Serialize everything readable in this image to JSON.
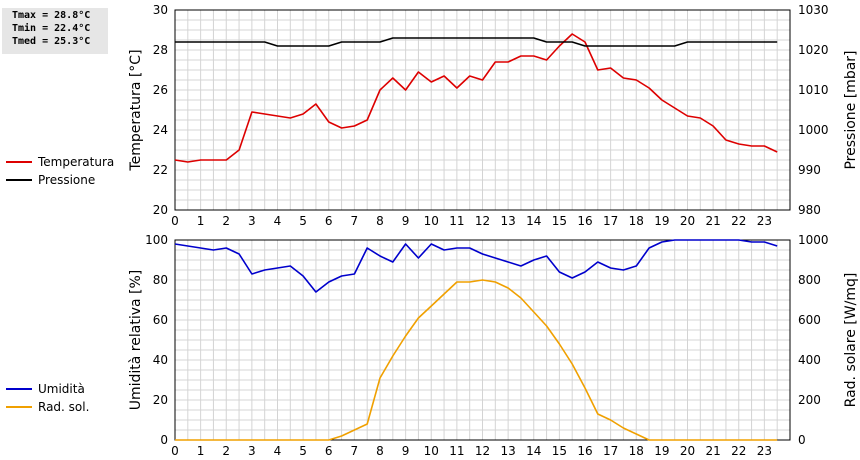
{
  "stats": {
    "tmax": "Tmax = 28.8°C",
    "tmin": "Tmin = 22.4°C",
    "tmed": "Tmed = 25.3°C"
  },
  "chart_data": [
    {
      "type": "line",
      "xlim": [
        0,
        24
      ],
      "x_ticks": [
        0,
        1,
        2,
        3,
        4,
        5,
        6,
        7,
        8,
        9,
        10,
        11,
        12,
        13,
        14,
        15,
        16,
        17,
        18,
        19,
        20,
        21,
        22,
        23
      ],
      "left_axis": {
        "label": "Temperatura [°C]",
        "ylim": [
          20,
          30
        ],
        "ticks": [
          20,
          22,
          24,
          26,
          28,
          30
        ]
      },
      "right_axis": {
        "label": "Pressione [mbar]",
        "ylim": [
          980,
          1030
        ],
        "ticks": [
          980,
          990,
          1000,
          1010,
          1020,
          1030
        ]
      },
      "grid": true,
      "legend_position": "left-outside",
      "series": [
        {
          "name": "Temperatura",
          "color": "#dd0000",
          "axis": "left",
          "x": [
            0,
            0.5,
            1,
            1.5,
            2,
            2.5,
            3,
            3.5,
            4,
            4.5,
            5,
            5.5,
            6,
            6.5,
            7,
            7.5,
            8,
            8.5,
            9,
            9.5,
            10,
            10.5,
            11,
            11.5,
            12,
            12.5,
            13,
            13.5,
            14,
            14.5,
            15,
            15.5,
            16,
            16.5,
            17,
            17.5,
            18,
            18.5,
            19,
            19.5,
            20,
            20.5,
            21,
            21.5,
            22,
            22.5,
            23,
            23.5
          ],
          "y": [
            22.5,
            22.4,
            22.5,
            22.5,
            22.5,
            23.0,
            24.9,
            24.8,
            24.7,
            24.6,
            24.8,
            25.3,
            24.4,
            24.1,
            24.2,
            24.5,
            26.0,
            26.6,
            26.0,
            26.9,
            26.4,
            26.7,
            26.1,
            26.7,
            26.5,
            27.4,
            27.4,
            27.7,
            27.7,
            27.5,
            28.2,
            28.8,
            28.4,
            27.0,
            27.1,
            26.6,
            26.5,
            26.1,
            25.5,
            25.1,
            24.7,
            24.6,
            24.2,
            23.5,
            23.3,
            23.2,
            23.2,
            22.9
          ]
        },
        {
          "name": "Pressione",
          "color": "#000000",
          "axis": "right",
          "x": [
            0,
            0.5,
            1,
            1.5,
            2,
            2.5,
            3,
            3.5,
            4,
            4.5,
            5,
            5.5,
            6,
            6.5,
            7,
            7.5,
            8,
            8.5,
            9,
            9.5,
            10,
            10.5,
            11,
            11.5,
            12,
            12.5,
            13,
            13.5,
            14,
            14.5,
            15,
            15.5,
            16,
            16.5,
            17,
            17.5,
            18,
            18.5,
            19,
            19.5,
            20,
            20.5,
            21,
            21.5,
            22,
            22.5,
            23,
            23.5
          ],
          "y": [
            1022,
            1022,
            1022,
            1022,
            1022,
            1022,
            1022,
            1022,
            1021,
            1021,
            1021,
            1021,
            1021,
            1022,
            1022,
            1022,
            1022,
            1023,
            1023,
            1023,
            1023,
            1023,
            1023,
            1023,
            1023,
            1023,
            1023,
            1023,
            1023,
            1022,
            1022,
            1022,
            1021,
            1021,
            1021,
            1021,
            1021,
            1021,
            1021,
            1021,
            1022,
            1022,
            1022,
            1022,
            1022,
            1022,
            1022,
            1022
          ]
        }
      ]
    },
    {
      "type": "line",
      "xlim": [
        0,
        24
      ],
      "x_ticks": [
        0,
        1,
        2,
        3,
        4,
        5,
        6,
        7,
        8,
        9,
        10,
        11,
        12,
        13,
        14,
        15,
        16,
        17,
        18,
        19,
        20,
        21,
        22,
        23
      ],
      "left_axis": {
        "label": "Umidità relativa [%]",
        "ylim": [
          0,
          100
        ],
        "ticks": [
          0,
          20,
          40,
          60,
          80,
          100
        ]
      },
      "right_axis": {
        "label": "Rad. solare [W/mq]",
        "ylim": [
          0,
          1000
        ],
        "ticks": [
          0,
          200,
          400,
          600,
          800,
          1000
        ]
      },
      "grid": true,
      "legend_position": "left-outside",
      "series": [
        {
          "name": "Umidità",
          "color": "#0000cc",
          "axis": "left",
          "x": [
            0,
            0.5,
            1,
            1.5,
            2,
            2.5,
            3,
            3.5,
            4,
            4.5,
            5,
            5.5,
            6,
            6.5,
            7,
            7.5,
            8,
            8.5,
            9,
            9.5,
            10,
            10.5,
            11,
            11.5,
            12,
            12.5,
            13,
            13.5,
            14,
            14.5,
            15,
            15.5,
            16,
            16.5,
            17,
            17.5,
            18,
            18.5,
            19,
            19.5,
            20,
            20.5,
            21,
            21.5,
            22,
            22.5,
            23,
            23.5
          ],
          "y": [
            98,
            97,
            96,
            95,
            96,
            93,
            83,
            85,
            86,
            87,
            82,
            74,
            79,
            82,
            83,
            96,
            92,
            89,
            98,
            91,
            98,
            95,
            96,
            96,
            93,
            91,
            89,
            87,
            90,
            92,
            84,
            81,
            84,
            89,
            86,
            85,
            87,
            96,
            99,
            100,
            100,
            100,
            100,
            100,
            100,
            99,
            99,
            97
          ]
        },
        {
          "name": "Rad. sol.",
          "color": "#f0a000",
          "axis": "right",
          "x": [
            0,
            0.5,
            1,
            1.5,
            2,
            2.5,
            3,
            3.5,
            4,
            4.5,
            5,
            5.5,
            6,
            6.5,
            7,
            7.5,
            8,
            8.5,
            9,
            9.5,
            10,
            10.5,
            11,
            11.5,
            12,
            12.5,
            13,
            13.5,
            14,
            14.5,
            15,
            15.5,
            16,
            16.5,
            17,
            17.5,
            18,
            18.5,
            19,
            19.5,
            20,
            20.5,
            21,
            21.5,
            22,
            22.5,
            23,
            23.5
          ],
          "y": [
            0,
            0,
            0,
            0,
            0,
            0,
            0,
            0,
            0,
            0,
            0,
            0,
            0,
            20,
            50,
            80,
            310,
            420,
            520,
            610,
            670,
            730,
            790,
            790,
            800,
            790,
            760,
            710,
            640,
            570,
            480,
            380,
            260,
            130,
            100,
            60,
            30,
            0,
            0,
            0,
            0,
            0,
            0,
            0,
            0,
            0,
            0,
            0
          ]
        }
      ]
    }
  ]
}
